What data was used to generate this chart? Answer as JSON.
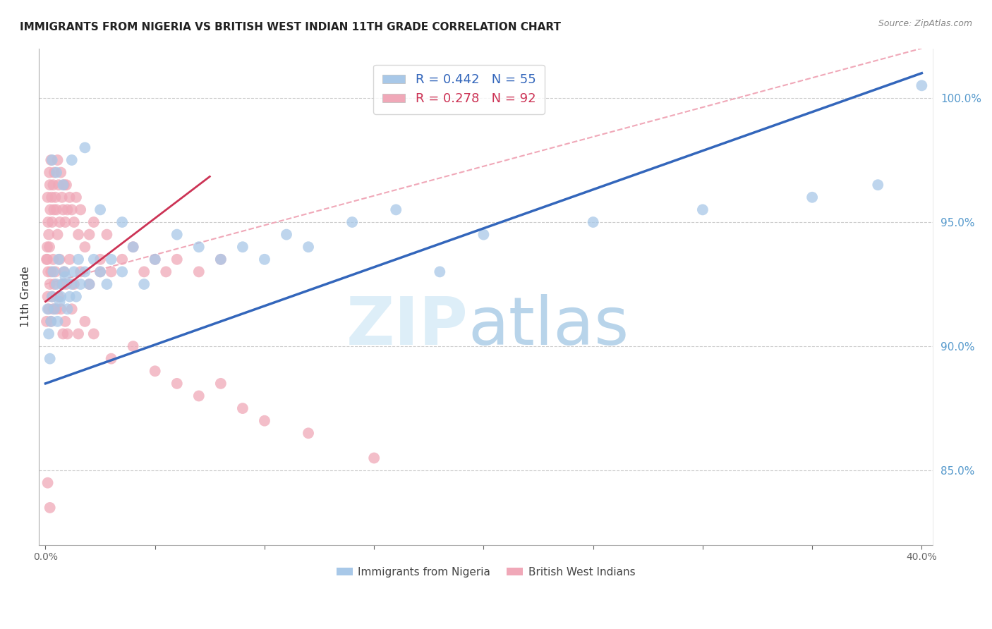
{
  "title": "IMMIGRANTS FROM NIGERIA VS BRITISH WEST INDIAN 11TH GRADE CORRELATION CHART",
  "source": "Source: ZipAtlas.com",
  "ylabel": "11th Grade",
  "right_yticks": [
    85.0,
    90.0,
    95.0,
    100.0
  ],
  "watermark_zip": "ZIP",
  "watermark_atlas": "atlas",
  "legend_nigeria": "R = 0.442   N = 55",
  "legend_bwi": "R = 0.278   N = 92",
  "legend_nigeria_label": "Immigrants from Nigeria",
  "legend_bwi_label": "British West Indians",
  "nigeria_color": "#a8c8e8",
  "bwi_color": "#f0a8b8",
  "nigeria_line_color": "#3366bb",
  "bwi_line_color": "#cc3355",
  "diagonal_color": "#f0a8b8",
  "background_color": "#ffffff",
  "grid_color": "#cccccc",
  "right_axis_color": "#5599cc",
  "title_fontsize": 11,
  "xmin": 0.0,
  "xmax": 40.0,
  "ymin": 82.0,
  "ymax": 102.0,
  "nigeria_scatter_x": [
    0.1,
    0.15,
    0.2,
    0.25,
    0.3,
    0.35,
    0.4,
    0.5,
    0.55,
    0.6,
    0.65,
    0.7,
    0.8,
    0.85,
    0.9,
    1.0,
    1.1,
    1.2,
    1.3,
    1.4,
    1.5,
    1.6,
    1.8,
    2.0,
    2.2,
    2.5,
    2.8,
    3.0,
    3.5,
    4.0,
    4.5,
    5.0,
    6.0,
    7.0,
    8.0,
    9.0,
    10.0,
    11.0,
    12.0,
    14.0,
    16.0,
    18.0,
    20.0,
    25.0,
    30.0,
    35.0,
    38.0,
    40.0,
    0.3,
    0.5,
    0.8,
    1.2,
    1.8,
    2.5,
    3.5
  ],
  "nigeria_scatter_y": [
    91.5,
    90.5,
    89.5,
    91.0,
    92.0,
    93.0,
    91.5,
    92.5,
    91.0,
    93.5,
    91.8,
    92.0,
    92.5,
    93.0,
    92.8,
    91.5,
    92.0,
    92.5,
    93.0,
    92.0,
    93.5,
    92.5,
    93.0,
    92.5,
    93.5,
    93.0,
    92.5,
    93.5,
    93.0,
    94.0,
    92.5,
    93.5,
    94.5,
    94.0,
    93.5,
    94.0,
    93.5,
    94.5,
    94.0,
    95.0,
    95.5,
    93.0,
    94.5,
    95.0,
    95.5,
    96.0,
    96.5,
    100.5,
    97.5,
    97.0,
    96.5,
    97.5,
    98.0,
    95.5,
    95.0
  ],
  "bwi_scatter_x": [
    0.05,
    0.08,
    0.1,
    0.12,
    0.15,
    0.18,
    0.2,
    0.22,
    0.25,
    0.28,
    0.3,
    0.35,
    0.38,
    0.4,
    0.45,
    0.5,
    0.55,
    0.6,
    0.65,
    0.7,
    0.75,
    0.8,
    0.85,
    0.9,
    0.95,
    1.0,
    1.1,
    1.2,
    1.3,
    1.4,
    1.5,
    1.6,
    1.8,
    2.0,
    2.2,
    2.5,
    2.8,
    3.0,
    3.5,
    4.0,
    4.5,
    5.0,
    5.5,
    6.0,
    7.0,
    8.0,
    0.05,
    0.1,
    0.15,
    0.2,
    0.25,
    0.3,
    0.35,
    0.4,
    0.5,
    0.6,
    0.7,
    0.8,
    0.9,
    1.0,
    1.2,
    1.5,
    1.8,
    2.2,
    0.08,
    0.12,
    0.18,
    0.25,
    0.35,
    0.45,
    0.55,
    0.65,
    0.75,
    0.85,
    0.95,
    1.1,
    1.3,
    1.6,
    2.0,
    2.5,
    3.0,
    4.0,
    5.0,
    6.0,
    7.0,
    8.0,
    9.0,
    10.0,
    12.0,
    15.0,
    0.1,
    0.2
  ],
  "bwi_scatter_y": [
    93.5,
    94.0,
    96.0,
    95.0,
    94.5,
    97.0,
    96.5,
    95.5,
    97.5,
    96.0,
    95.0,
    96.5,
    95.5,
    97.0,
    96.0,
    95.5,
    97.5,
    96.5,
    95.0,
    97.0,
    96.0,
    95.5,
    96.5,
    95.0,
    96.5,
    95.5,
    96.0,
    95.5,
    95.0,
    96.0,
    94.5,
    95.5,
    94.0,
    94.5,
    95.0,
    93.5,
    94.5,
    93.0,
    93.5,
    94.0,
    93.0,
    93.5,
    93.0,
    93.5,
    93.0,
    93.5,
    91.0,
    92.0,
    91.5,
    92.5,
    91.0,
    92.0,
    91.5,
    92.5,
    91.5,
    92.0,
    91.5,
    90.5,
    91.0,
    90.5,
    91.5,
    90.5,
    91.0,
    90.5,
    93.5,
    93.0,
    94.0,
    93.0,
    93.5,
    93.0,
    94.5,
    93.5,
    92.5,
    93.0,
    92.5,
    93.5,
    92.5,
    93.0,
    92.5,
    93.0,
    89.5,
    90.0,
    89.0,
    88.5,
    88.0,
    88.5,
    87.5,
    87.0,
    86.5,
    85.5,
    84.5,
    83.5
  ],
  "nigeria_trend": [
    0.0,
    40.0,
    88.5,
    101.0
  ],
  "bwi_trend": [
    0.0,
    7.0,
    91.8,
    96.5
  ],
  "diagonal_line": [
    0.0,
    40.0,
    92.5,
    102.0
  ]
}
